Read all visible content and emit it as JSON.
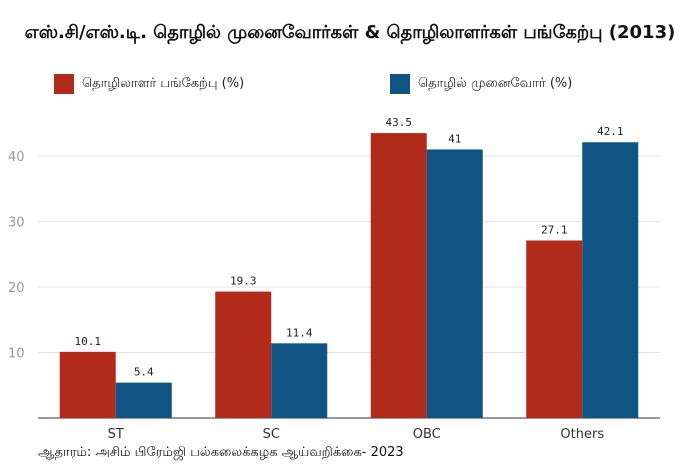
{
  "chart_data": {
    "type": "bar",
    "title": "எஸ்.சி/எஸ்.டி. தொழில் முனைவோர்கள் & தொழிலாளர்கள் பங்கேற்பு (2013)",
    "categories": [
      "ST",
      "SC",
      "OBC",
      "Others"
    ],
    "series": [
      {
        "name": "தொழிலாளர் பங்கேற்பு (%)",
        "values": [
          10.1,
          19.3,
          43.5,
          27.1
        ],
        "color": "#b22a1a"
      },
      {
        "name": "தொழில் முனைவோர் (%)",
        "values": [
          5.4,
          11.4,
          41,
          42.1
        ],
        "color": "#0f5483"
      }
    ],
    "yticks": [
      10,
      20,
      30,
      40
    ],
    "ylim": [
      0,
      48
    ],
    "grid": true,
    "legend": "top-left",
    "source": "ஆதாரம்: அசிம் பிரேம்ஜி பல்கலைக்கழக ஆய்வறிக்கை- 2023"
  }
}
